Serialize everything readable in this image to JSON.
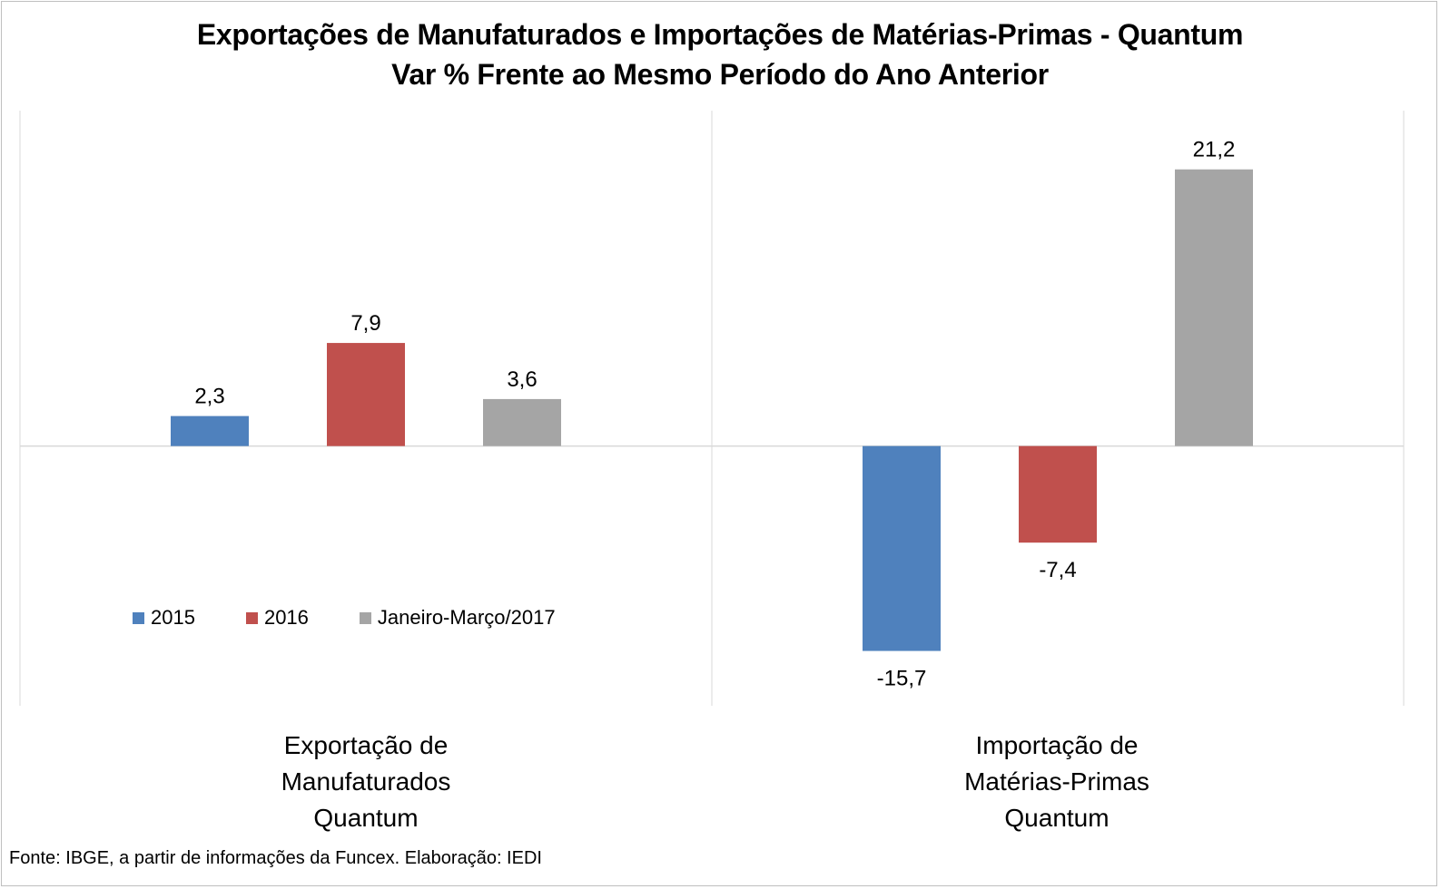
{
  "chart_data": {
    "type": "bar",
    "title": "Exportações de Manufaturados e Importações de Matérias-Primas - Quantum",
    "subtitle": "Var % Frente ao Mesmo Período do Ano Anterior",
    "categories": [
      "Exportação de\nManufaturados\nQuantum",
      "Importação de\nMatérias-Primas\nQuantum"
    ],
    "series": [
      {
        "name": "2015",
        "values": [
          2.3,
          -15.7
        ],
        "labels": [
          "2,3",
          "-15,7"
        ],
        "color": "#4f81bd"
      },
      {
        "name": "2016",
        "values": [
          7.9,
          -7.4
        ],
        "labels": [
          "7,9",
          "-7,4"
        ],
        "color": "#c0504d"
      },
      {
        "name": "Janeiro-Março/2017",
        "values": [
          3.6,
          21.2
        ],
        "labels": [
          "3,6",
          "21,2"
        ],
        "color": "#a5a5a5"
      }
    ],
    "ylim": [
      -19.9,
      25.7
    ],
    "grid": false,
    "legend_position": "bottom-left, inside plot"
  },
  "source": "Fonte: IBGE, a partir de informações da Funcex. Elaboração: IEDI"
}
